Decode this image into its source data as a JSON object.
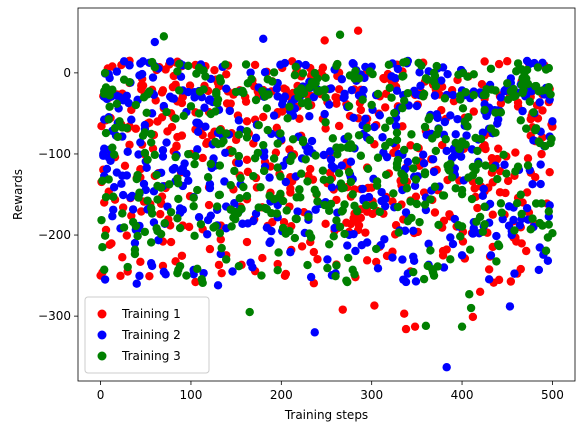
{
  "chart_data": {
    "type": "scatter",
    "title": "",
    "xlabel": "Training steps",
    "ylabel": "Rewards",
    "xlim": [
      -25,
      525
    ],
    "ylim": [
      -380,
      80
    ],
    "xticks": [
      0,
      100,
      200,
      300,
      400,
      500
    ],
    "yticks": [
      0,
      -100,
      -200,
      -300
    ],
    "xtick_labels": [
      "0",
      "100",
      "200",
      "300",
      "400",
      "500"
    ],
    "ytick_labels": [
      "0",
      "−100",
      "−200",
      "−300"
    ],
    "grid": false,
    "legend_position": "lower-left",
    "points_per_series": 500,
    "series": [
      {
        "name": "Training 1",
        "color": "#ff0000",
        "seed": 11,
        "highlights": [
          {
            "x": 0,
            "y": -250
          },
          {
            "x": 30,
            "y": -245
          },
          {
            "x": 205,
            "y": -248
          },
          {
            "x": 268,
            "y": -292
          },
          {
            "x": 303,
            "y": -287
          },
          {
            "x": 336,
            "y": -297
          },
          {
            "x": 338,
            "y": -316
          },
          {
            "x": 348,
            "y": -313
          },
          {
            "x": 412,
            "y": -301
          },
          {
            "x": 420,
            "y": -270
          },
          {
            "x": 285,
            "y": 52
          },
          {
            "x": 248,
            "y": 40
          },
          {
            "x": 465,
            "y": -242
          }
        ]
      },
      {
        "name": "Training 2",
        "color": "#0000ff",
        "seed": 23,
        "highlights": [
          {
            "x": 237,
            "y": -320
          },
          {
            "x": 383,
            "y": -363
          },
          {
            "x": 130,
            "y": -262
          },
          {
            "x": 40,
            "y": -260
          },
          {
            "x": 453,
            "y": -288
          },
          {
            "x": 380,
            "y": -240
          },
          {
            "x": 335,
            "y": -255
          },
          {
            "x": 60,
            "y": 38
          },
          {
            "x": 180,
            "y": 42
          }
        ]
      },
      {
        "name": "Training 3",
        "color": "#008000",
        "seed": 37,
        "highlights": [
          {
            "x": 165,
            "y": -295
          },
          {
            "x": 360,
            "y": -312
          },
          {
            "x": 400,
            "y": -313
          },
          {
            "x": 410,
            "y": -290
          },
          {
            "x": 408,
            "y": -273
          },
          {
            "x": 178,
            "y": -250
          },
          {
            "x": 273,
            "y": -258
          },
          {
            "x": 70,
            "y": 45
          },
          {
            "x": 265,
            "y": 47
          },
          {
            "x": 2,
            "y": -215
          }
        ]
      }
    ]
  }
}
